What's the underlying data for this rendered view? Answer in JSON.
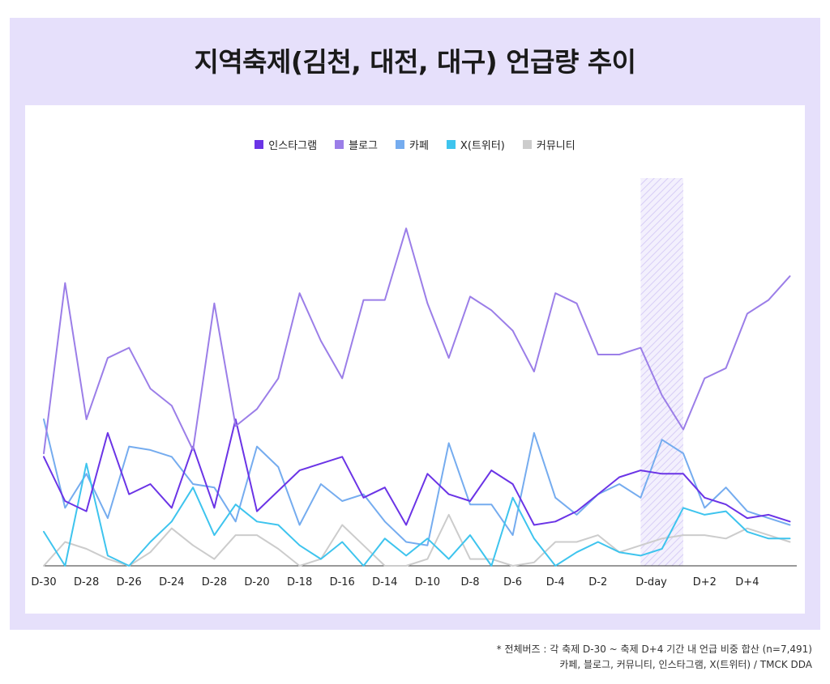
{
  "title": "지역축제(김천, 대전, 대구) 언급량 추이",
  "footnote": {
    "line1": "* 전체버즈 : 각 축제 D-30 ~ 축제 D+4 기간 내 언급 비중 합산 (n=7,491)",
    "line2": "카페, 블로그, 커뮤니티, 인스타그램, X(트위터) / TMCK DDA"
  },
  "chart_data": {
    "type": "line",
    "title": "지역축제(김천, 대전, 대구) 언급량 추이",
    "xlabel": "",
    "ylabel": "",
    "ylim": [
      0,
      100
    ],
    "grid": false,
    "legend_position": "top-center",
    "highlight": {
      "from_index": 28,
      "to_index": 30,
      "pattern": "diagonal-hatch"
    },
    "x": [
      0,
      1,
      2,
      3,
      4,
      5,
      6,
      7,
      8,
      9,
      10,
      11,
      12,
      13,
      14,
      15,
      16,
      17,
      18,
      19,
      20,
      21,
      22,
      23,
      24,
      25,
      26,
      27,
      28,
      29,
      30,
      31,
      32,
      33,
      34,
      35
    ],
    "tick_labels": [
      {
        "index": 0,
        "label": "D-30"
      },
      {
        "index": 2,
        "label": "D-28"
      },
      {
        "index": 4,
        "label": "D-26"
      },
      {
        "index": 6,
        "label": "D-24"
      },
      {
        "index": 8,
        "label": "D-28"
      },
      {
        "index": 10,
        "label": "D-20"
      },
      {
        "index": 12,
        "label": "D-18"
      },
      {
        "index": 14,
        "label": "D-16"
      },
      {
        "index": 16,
        "label": "D-14"
      },
      {
        "index": 18,
        "label": "D-10"
      },
      {
        "index": 20,
        "label": "D-8"
      },
      {
        "index": 22,
        "label": "D-6"
      },
      {
        "index": 24,
        "label": "D-4"
      },
      {
        "index": 26,
        "label": "D-2"
      },
      {
        "index": 28.5,
        "label": "D-day"
      },
      {
        "index": 31,
        "label": "D+2"
      },
      {
        "index": 33,
        "label": "D+4"
      }
    ],
    "series": [
      {
        "name": "인스타그램",
        "color": "#6b34e6",
        "values": [
          32,
          19,
          16,
          39,
          21,
          24,
          17,
          35,
          17,
          43,
          16,
          22,
          28,
          30,
          32,
          20,
          23,
          12,
          27,
          21,
          19,
          28,
          24,
          12,
          13,
          16,
          21,
          26,
          28,
          27,
          27,
          20,
          18,
          14,
          15,
          13
        ]
      },
      {
        "name": "블로그",
        "color": "#9b7ee8",
        "values": [
          33,
          83,
          43,
          61,
          64,
          52,
          47,
          34,
          77,
          41,
          46,
          55,
          80,
          66,
          55,
          78,
          78,
          99,
          77,
          61,
          79,
          75,
          69,
          57,
          80,
          77,
          62,
          62,
          64,
          50,
          40,
          55,
          58,
          74,
          78,
          85
        ]
      },
      {
        "name": "카페",
        "color": "#75acef",
        "values": [
          43,
          17,
          27,
          14,
          35,
          34,
          32,
          24,
          23,
          13,
          35,
          29,
          12,
          24,
          19,
          21,
          13,
          7,
          6,
          36,
          18,
          18,
          9,
          39,
          20,
          15,
          21,
          24,
          20,
          37,
          33,
          17,
          23,
          16,
          14,
          12
        ]
      },
      {
        "name": "X(트위터)",
        "color": "#3ec4ee",
        "values": [
          10,
          0,
          30,
          3,
          0,
          7,
          13,
          23,
          9,
          18,
          13,
          12,
          6,
          2,
          7,
          0,
          8,
          3,
          8,
          2,
          9,
          0,
          20,
          8,
          0,
          4,
          7,
          4,
          3,
          5,
          17,
          15,
          16,
          10,
          8,
          8
        ]
      },
      {
        "name": "커뮤니티",
        "color": "#cccccc",
        "values": [
          0,
          7,
          5,
          2,
          0,
          4,
          11,
          6,
          2,
          9,
          9,
          5,
          0,
          2,
          12,
          6,
          0,
          0,
          2,
          15,
          2,
          2,
          0,
          1,
          7,
          7,
          9,
          4,
          6,
          8,
          9,
          9,
          8,
          11,
          9,
          7
        ]
      }
    ]
  }
}
